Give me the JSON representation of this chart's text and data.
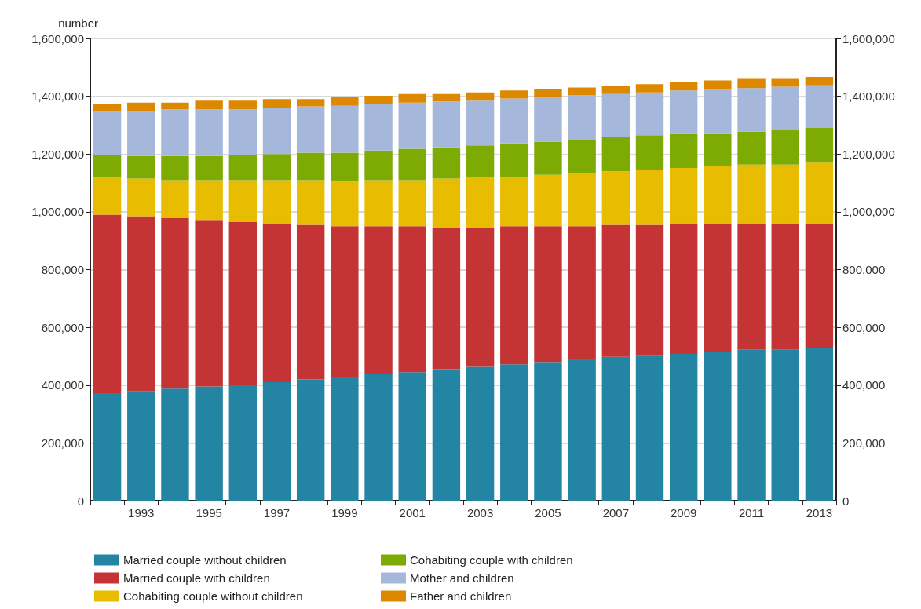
{
  "chart_data": {
    "type": "bar",
    "stacked": true,
    "ylabel": "number",
    "categories": [
      null,
      "1993",
      null,
      "1995",
      null,
      "1997",
      null,
      "1999",
      null,
      "2001",
      null,
      "2003",
      null,
      "2005",
      null,
      "2007",
      null,
      "2009",
      null,
      "2011",
      null,
      "2013"
    ],
    "series": [
      {
        "name": "Married couple without children",
        "color": "#2484a4",
        "values": [
          372000,
          378000,
          388000,
          395000,
          402000,
          410000,
          420000,
          427000,
          438000,
          445000,
          455000,
          463000,
          472000,
          480000,
          492000,
          498000,
          503000,
          508000,
          515000,
          522000,
          522000,
          530000
        ]
      },
      {
        "name": "Married couple with children",
        "color": "#c43434",
        "values": [
          618000,
          607000,
          590000,
          577000,
          564000,
          550000,
          535000,
          523000,
          512000,
          505000,
          490000,
          482000,
          478000,
          470000,
          458000,
          457000,
          452000,
          452000,
          445000,
          438000,
          438000,
          430000
        ]
      },
      {
        "name": "Cohabiting couple without children",
        "color": "#e8bc00",
        "values": [
          132000,
          130000,
          132000,
          138000,
          144000,
          150000,
          155000,
          155000,
          160000,
          160000,
          170000,
          177000,
          172000,
          178000,
          185000,
          185000,
          190000,
          192000,
          198000,
          203000,
          203000,
          210000
        ]
      },
      {
        "name": "Cohabiting couple with children",
        "color": "#7eaa04",
        "values": [
          73000,
          78000,
          83000,
          83000,
          88000,
          90000,
          95000,
          100000,
          102000,
          108000,
          108000,
          108000,
          115000,
          115000,
          113000,
          118000,
          120000,
          118000,
          112000,
          115000,
          119000,
          120000
        ]
      },
      {
        "name": "Mother and children",
        "color": "#a6b7dc",
        "values": [
          153000,
          157000,
          162000,
          162000,
          157000,
          160000,
          160000,
          162000,
          161000,
          160000,
          159000,
          155000,
          155000,
          155000,
          155000,
          150000,
          148000,
          150000,
          155000,
          150000,
          151000,
          148000
        ]
      },
      {
        "name": "Father and children",
        "color": "#dc8800",
        "values": [
          24000,
          28000,
          23000,
          30000,
          30000,
          30000,
          25000,
          30000,
          29000,
          30000,
          26000,
          28000,
          28000,
          27000,
          27000,
          29000,
          29000,
          28000,
          30000,
          32000,
          27000,
          29000
        ]
      }
    ],
    "ylim": [
      0,
      1600000
    ],
    "yticks": [
      {
        "value": 0,
        "label": "0"
      },
      {
        "value": 200000,
        "label": "200,000"
      },
      {
        "value": 400000,
        "label": "400,000"
      },
      {
        "value": 600000,
        "label": "600,000"
      },
      {
        "value": 800000,
        "label": "800,000"
      },
      {
        "value": 1000000,
        "label": "1,000,000"
      },
      {
        "value": 1200000,
        "label": "1,200,000"
      },
      {
        "value": 1400000,
        "label": "1,400,000"
      },
      {
        "value": 1600000,
        "label": "1,600,000"
      }
    ],
    "y2lim": [
      0,
      1600000
    ],
    "y2ticks": [
      {
        "value": 0,
        "label": "0"
      },
      {
        "value": 200000,
        "label": "200,000"
      },
      {
        "value": 400000,
        "label": "400,000"
      },
      {
        "value": 600000,
        "label": "600,000"
      },
      {
        "value": 800000,
        "label": "800,000"
      },
      {
        "value": 1000000,
        "label": "1,000,000"
      },
      {
        "value": 1200000,
        "label": "1,200,000"
      },
      {
        "value": 1400000,
        "label": "1,400,000"
      },
      {
        "value": 1600000,
        "label": "1,600,000"
      }
    ],
    "grid": "y",
    "legend": "bottom"
  }
}
